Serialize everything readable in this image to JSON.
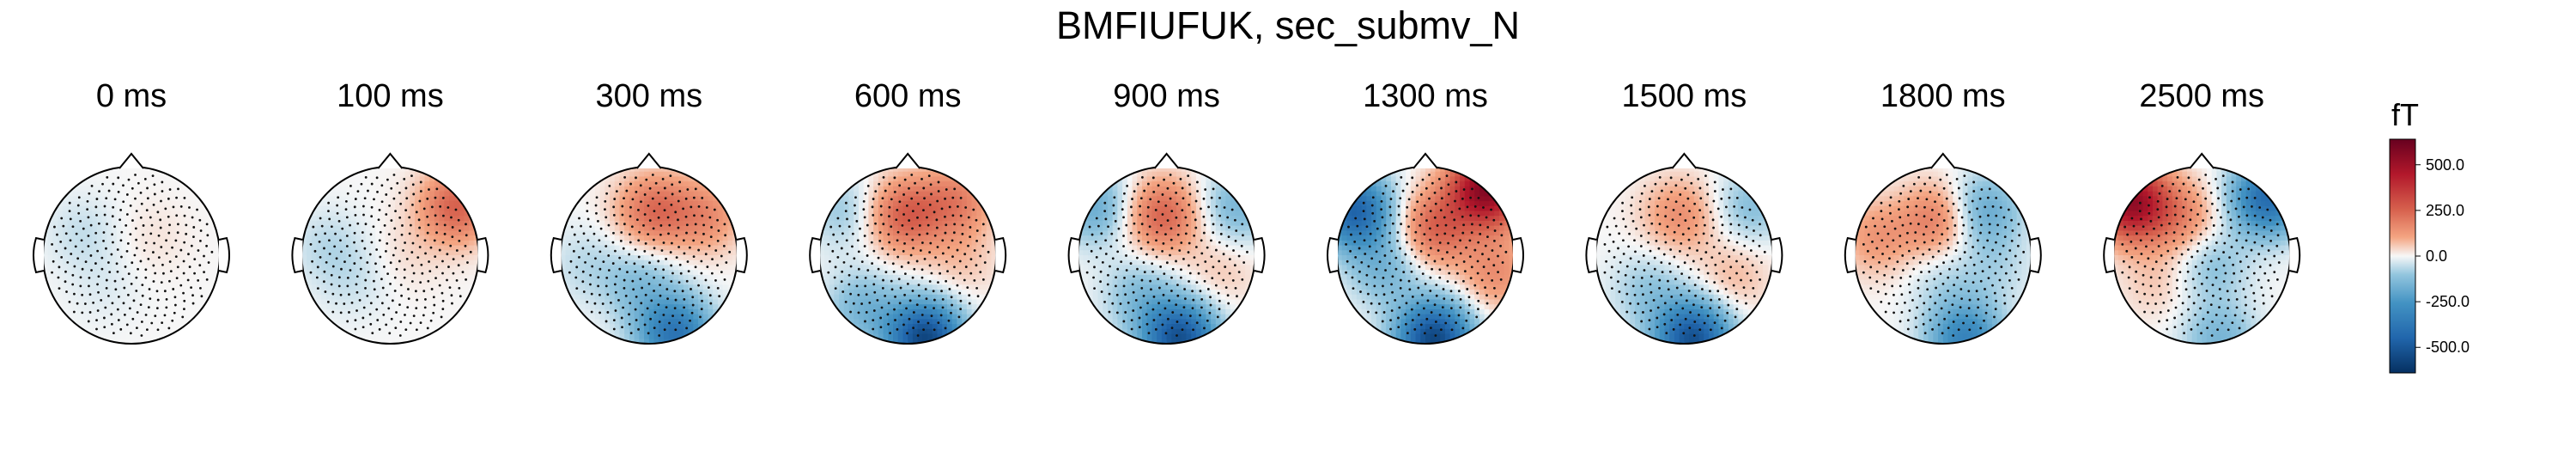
{
  "chart_data": {
    "type": "heatmap",
    "title": "BMFIUFUK, sec_submv_N",
    "colorbar": {
      "label": "fT",
      "ticks": [
        "500.0",
        "250.0",
        "0.0",
        "-250.0",
        "-500.0"
      ],
      "tick_values": [
        500,
        250,
        0,
        -250,
        -500
      ],
      "vmin": -640,
      "vmax": 640,
      "colormap": "RdBu_r"
    },
    "panels": [
      {
        "time": "0 ms",
        "pattern": [
          [
            -0.55,
            0.25,
            -50
          ],
          [
            0.25,
            0.2,
            25
          ],
          [
            -0.3,
            -0.35,
            -25
          ]
        ]
      },
      {
        "time": "100 ms",
        "pattern": [
          [
            0.75,
            0.55,
            250
          ],
          [
            -0.7,
            0.1,
            -60
          ],
          [
            -0.4,
            -0.3,
            -40
          ],
          [
            0.2,
            0.0,
            30
          ]
        ]
      },
      {
        "time": "300 ms",
        "pattern": [
          [
            0.05,
            0.5,
            220
          ],
          [
            0.65,
            0.45,
            150
          ],
          [
            -0.1,
            -0.35,
            -120
          ],
          [
            0.3,
            -0.9,
            -380
          ],
          [
            -0.7,
            -0.1,
            -60
          ]
        ]
      },
      {
        "time": "600 ms",
        "pattern": [
          [
            -0.05,
            0.45,
            250
          ],
          [
            0.55,
            0.6,
            180
          ],
          [
            0.2,
            -0.95,
            -560
          ],
          [
            -0.5,
            -0.6,
            -150
          ],
          [
            -0.7,
            0.5,
            -100
          ],
          [
            0.6,
            -0.1,
            60
          ]
        ]
      },
      {
        "time": "900 ms",
        "pattern": [
          [
            -0.05,
            0.45,
            250
          ],
          [
            0.8,
            0.55,
            -150
          ],
          [
            -0.8,
            0.55,
            -180
          ],
          [
            0.15,
            -0.95,
            -520
          ],
          [
            -0.3,
            -0.45,
            -120
          ],
          [
            0.6,
            -0.2,
            60
          ]
        ]
      },
      {
        "time": "1300 ms",
        "pattern": [
          [
            0.7,
            0.75,
            560
          ],
          [
            -0.8,
            0.5,
            -450
          ],
          [
            0.1,
            0.3,
            240
          ],
          [
            0.1,
            -0.95,
            -560
          ],
          [
            -0.45,
            -0.15,
            -150
          ],
          [
            0.8,
            -0.2,
            150
          ]
        ]
      },
      {
        "time": "1500 ms",
        "pattern": [
          [
            -0.05,
            0.45,
            150
          ],
          [
            0.75,
            0.55,
            -120
          ],
          [
            0.1,
            -0.95,
            -520
          ],
          [
            -0.4,
            -0.4,
            -100
          ],
          [
            0.55,
            -0.25,
            80
          ]
        ]
      },
      {
        "time": "1800 ms",
        "pattern": [
          [
            -0.05,
            0.4,
            200
          ],
          [
            0.45,
            0.5,
            -200
          ],
          [
            -0.75,
            0.2,
            130
          ],
          [
            0.6,
            -0.15,
            -60
          ],
          [
            0.25,
            -0.95,
            -320
          ],
          [
            0.0,
            -0.25,
            -60
          ]
        ]
      },
      {
        "time": "2500 ms",
        "pattern": [
          [
            -0.8,
            0.6,
            520
          ],
          [
            0.75,
            0.65,
            -420
          ],
          [
            -0.2,
            0.4,
            150
          ],
          [
            0.1,
            -0.1,
            -120
          ],
          [
            -0.5,
            -0.3,
            60
          ],
          [
            0.2,
            -0.95,
            -150
          ]
        ]
      }
    ]
  }
}
